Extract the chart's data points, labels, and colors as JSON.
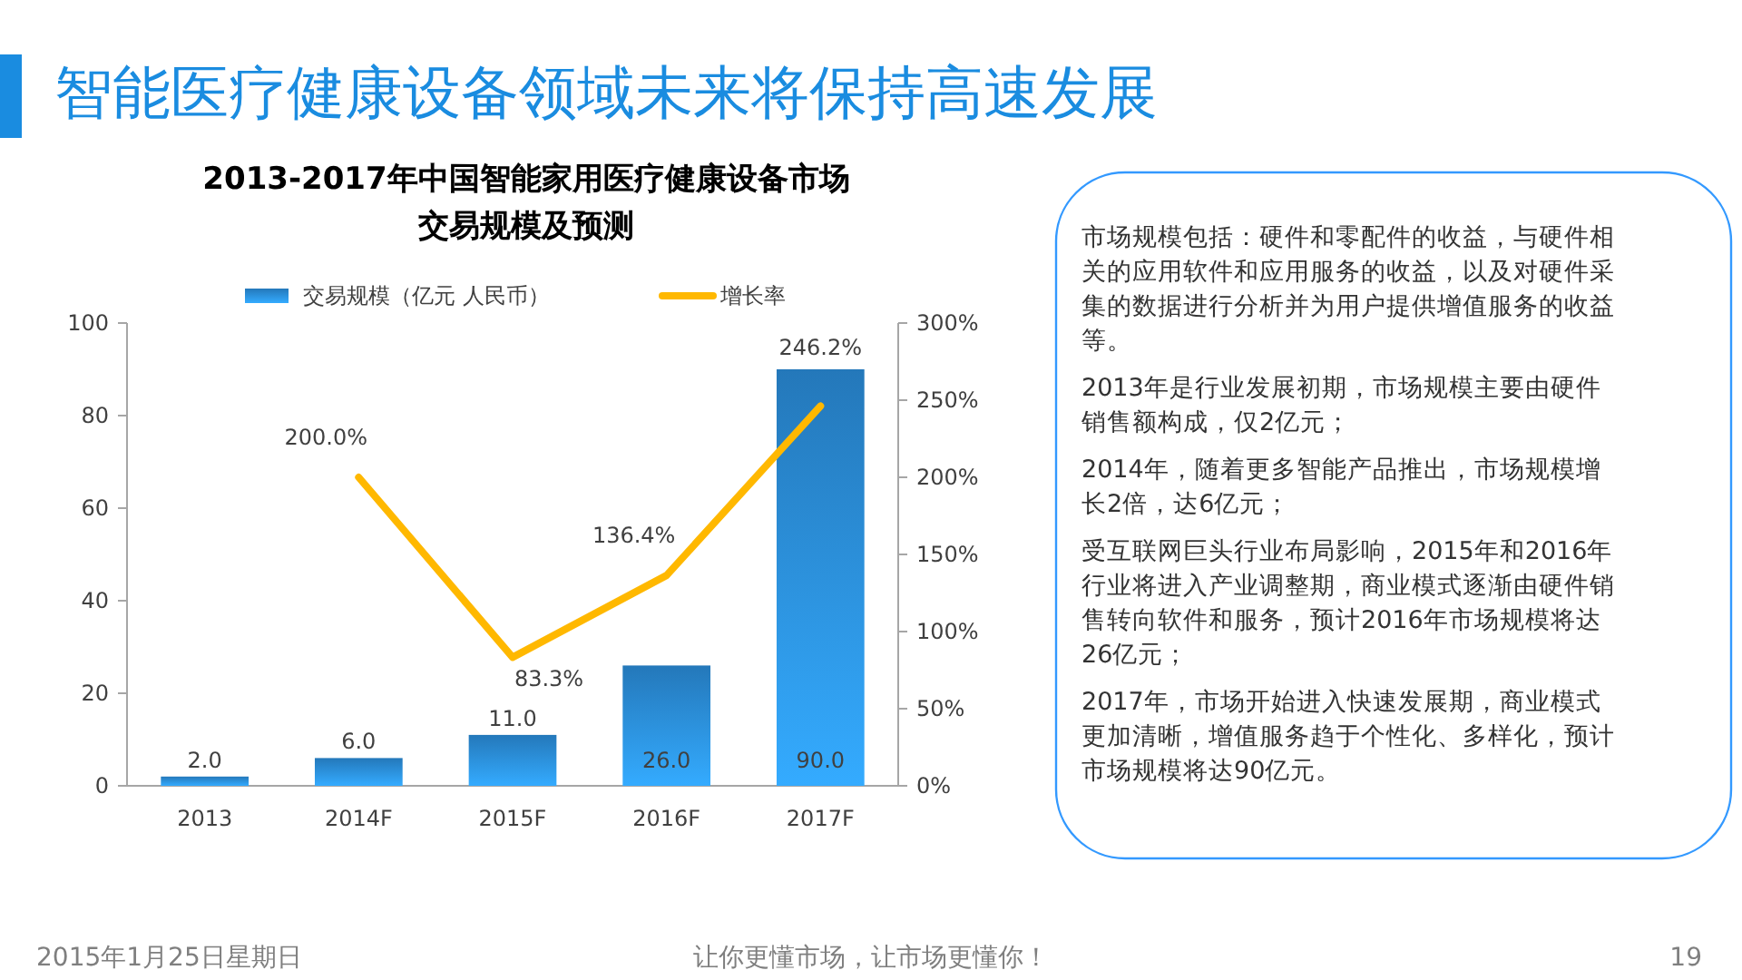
{
  "chart_data": {
    "type": "bar",
    "title": "智能医疗健康设备领域未来将保持高速发展",
    "subtitle": "2013-2017年中国智能家用医疗健康设备市场交易规模及预测",
    "categories": [
      "2013",
      "2014F",
      "2015F",
      "2016F",
      "2017F"
    ],
    "series": [
      {
        "name": "交易规模（亿元 人民币）",
        "color": "#2a8ad6",
        "values": [
          2.0,
          6.0,
          11.0,
          26.0,
          90.0
        ],
        "value_labels": [
          "2.0",
          "6.0",
          "11.0",
          "26.0",
          "90.0"
        ]
      },
      {
        "name": "增长率",
        "type": "line",
        "axis": "y2",
        "color": "#ffb800",
        "values": [
          null,
          200.0,
          83.3,
          136.4,
          246.2
        ],
        "value_labels": [
          null,
          "200.0%",
          "83.3%",
          "136.4%",
          "246.2%"
        ]
      }
    ],
    "ylim": [
      0,
      100
    ],
    "yticks": [
      0,
      20,
      40,
      60,
      80,
      100
    ],
    "y2lim": [
      0,
      300
    ],
    "y2ticks": [
      {
        "value": 0,
        "label": "0%"
      },
      {
        "value": 50,
        "label": "50%"
      },
      {
        "value": 100,
        "label": "100%"
      },
      {
        "value": 150,
        "label": "150%"
      },
      {
        "value": 200,
        "label": "200%"
      },
      {
        "value": 250,
        "label": "250%"
      },
      {
        "value": 300,
        "label": "300%"
      }
    ],
    "grid": false,
    "legend": "top",
    "marker": "none",
    "line_style": "solid",
    "annotations": [
      "市场规模包括：硬件和零配件的收益，与硬件相关的应用软件和应用服务的收益，以及对硬件采集的数据进行分析并为用户提供增值服务的收益等。",
      "2013年是行业发展初期，市场规模主要由硬件销售额构成，仅2亿元；",
      "2014年，随着更多智能产品推出，市场规模增长2倍，达6亿元；",
      "受互联网巨头行业布局影响，2015年和2016年行业将进入产业调整期，商业模式逐渐由硬件销售转向软件和服务，预计2016年市场规模将达26亿元；",
      "2017年，市场开始进入快速发展期，商业模式更加清晰，增值服务趋于个性化、多样化，预计市场规模将达90亿元。",
      "2015年1月25日星期日",
      "让你更懂市场，让市场更懂你！",
      "19"
    ]
  }
}
